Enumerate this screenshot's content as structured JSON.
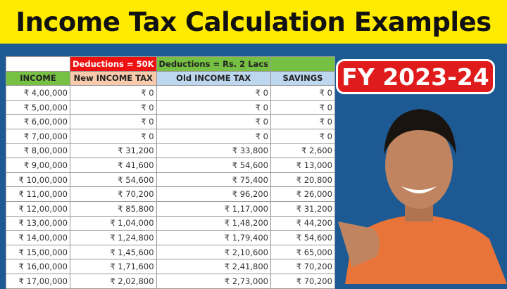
{
  "title": "Income Tax Calculation Examples",
  "badge": "FY 2023-24",
  "table": {
    "group_headers": [
      "",
      "Deductions = 50K",
      "Deductions = Rs. 2 Lacs",
      ""
    ],
    "headers": [
      "INCOME",
      "New INCOME TAX",
      "Old INCOME TAX",
      "SAVINGS"
    ],
    "rows": [
      [
        "₹ 4,00,000",
        "₹ 0",
        "₹ 0",
        "₹ 0"
      ],
      [
        "₹ 5,00,000",
        "₹ 0",
        "₹ 0",
        "₹ 0"
      ],
      [
        "₹ 6,00,000",
        "₹ 0",
        "₹ 0",
        "₹ 0"
      ],
      [
        "₹ 7,00,000",
        "₹ 0",
        "₹ 0",
        "₹ 0"
      ],
      [
        "₹ 8,00,000",
        "₹ 31,200",
        "₹ 33,800",
        "₹ 2,600"
      ],
      [
        "₹ 9,00,000",
        "₹ 41,600",
        "₹ 54,600",
        "₹ 13,000"
      ],
      [
        "₹ 10,00,000",
        "₹ 54,600",
        "₹ 75,400",
        "₹ 20,800"
      ],
      [
        "₹ 11,00,000",
        "₹ 70,200",
        "₹ 96,200",
        "₹ 26,000"
      ],
      [
        "₹ 12,00,000",
        "₹ 85,800",
        "₹ 1,17,000",
        "₹ 31,200"
      ],
      [
        "₹ 13,00,000",
        "₹ 1,04,000",
        "₹ 1,48,200",
        "₹ 44,200"
      ],
      [
        "₹ 14,00,000",
        "₹ 1,24,800",
        "₹ 1,79,400",
        "₹ 54,600"
      ],
      [
        "₹ 15,00,000",
        "₹ 1,45,600",
        "₹ 2,10,600",
        "₹ 65,000"
      ],
      [
        "₹ 16,00,000",
        "₹ 1,71,600",
        "₹ 2,41,800",
        "₹ 70,200"
      ],
      [
        "₹ 17,00,000",
        "₹ 2,02,800",
        "₹ 2,73,000",
        "₹ 70,200"
      ]
    ]
  },
  "colors": {
    "banner": "#ffeb00",
    "background": "#1d5a94",
    "badge": "#e01b1b",
    "shirt": "#e8743a"
  }
}
